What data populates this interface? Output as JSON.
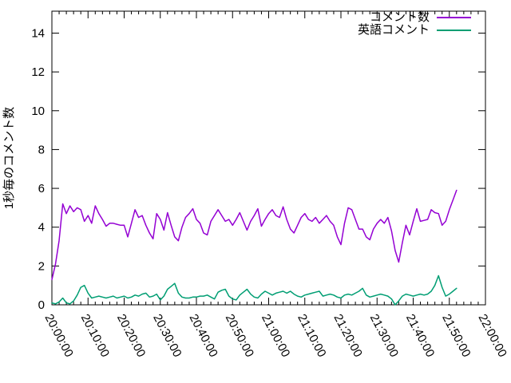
{
  "chart_data": {
    "type": "line",
    "title": "",
    "xlabel": "",
    "ylabel": "1秒毎のコメント数",
    "grid": false,
    "legend_position": "top-right-inside",
    "background_color": "#ffffff",
    "frame_color": "#000000",
    "ylim": [
      0,
      15.13
    ],
    "y_major_ticks": [
      0,
      2,
      4,
      6,
      8,
      10,
      12,
      14
    ],
    "xlim_minutes": [
      0,
      120
    ],
    "x_major_ticks": [
      {
        "minute": 0,
        "label": "20:00:00"
      },
      {
        "minute": 10,
        "label": "20:10:00"
      },
      {
        "minute": 20,
        "label": "20:20:00"
      },
      {
        "minute": 30,
        "label": "20:30:00"
      },
      {
        "minute": 40,
        "label": "20:40:00"
      },
      {
        "minute": 50,
        "label": "20:50:00"
      },
      {
        "minute": 60,
        "label": "21:00:00"
      },
      {
        "minute": 70,
        "label": "21:10:00"
      },
      {
        "minute": 80,
        "label": "21:20:00"
      },
      {
        "minute": 90,
        "label": "21:30:00"
      },
      {
        "minute": 100,
        "label": "21:40:00"
      },
      {
        "minute": 110,
        "label": "21:50:00"
      },
      {
        "minute": 120,
        "label": "22:00:00"
      }
    ],
    "x_minor_tick_interval_minutes": 2,
    "x_start_minute": 0,
    "x_step_minutes": 1,
    "series": [
      {
        "name": "コメント数",
        "color": "#9400d3",
        "values": [
          1.3,
          2.1,
          3.3,
          5.2,
          4.7,
          5.1,
          4.8,
          5.0,
          4.9,
          4.3,
          4.6,
          4.2,
          5.1,
          4.7,
          4.4,
          4.05,
          4.2,
          4.2,
          4.15,
          4.1,
          4.1,
          3.5,
          4.2,
          4.9,
          4.5,
          4.6,
          4.1,
          3.7,
          3.4,
          4.7,
          4.4,
          3.85,
          4.75,
          4.1,
          3.5,
          3.3,
          4.0,
          4.5,
          4.7,
          4.95,
          4.4,
          4.2,
          3.7,
          3.6,
          4.3,
          4.6,
          4.9,
          4.6,
          4.3,
          4.4,
          4.1,
          4.4,
          4.75,
          4.3,
          3.85,
          4.3,
          4.6,
          4.95,
          4.05,
          4.4,
          4.7,
          4.9,
          4.6,
          4.5,
          5.05,
          4.4,
          3.9,
          3.7,
          4.1,
          4.5,
          4.7,
          4.4,
          4.3,
          4.5,
          4.2,
          4.4,
          4.6,
          4.3,
          4.1,
          3.5,
          3.1,
          4.2,
          5.0,
          4.9,
          4.4,
          3.9,
          3.9,
          3.5,
          3.35,
          3.9,
          4.2,
          4.4,
          4.2,
          4.5,
          3.8,
          2.8,
          2.2,
          3.2,
          4.1,
          3.6,
          4.3,
          4.95,
          4.3,
          4.35,
          4.4,
          4.9,
          4.75,
          4.7,
          4.1,
          4.3,
          4.9,
          5.4,
          5.9
        ]
      },
      {
        "name": "英語コメント",
        "color": "#009e73",
        "values": [
          0.1,
          0.05,
          0.15,
          0.35,
          0.1,
          0.05,
          0.2,
          0.5,
          0.9,
          1.0,
          0.6,
          0.35,
          0.4,
          0.45,
          0.4,
          0.35,
          0.4,
          0.45,
          0.35,
          0.4,
          0.45,
          0.35,
          0.4,
          0.5,
          0.45,
          0.55,
          0.6,
          0.4,
          0.45,
          0.55,
          0.25,
          0.45,
          0.8,
          0.95,
          1.1,
          0.6,
          0.4,
          0.35,
          0.35,
          0.4,
          0.4,
          0.45,
          0.45,
          0.5,
          0.4,
          0.3,
          0.65,
          0.75,
          0.8,
          0.45,
          0.3,
          0.25,
          0.5,
          0.65,
          0.8,
          0.55,
          0.4,
          0.35,
          0.55,
          0.7,
          0.6,
          0.5,
          0.6,
          0.65,
          0.7,
          0.6,
          0.7,
          0.55,
          0.45,
          0.4,
          0.5,
          0.55,
          0.6,
          0.65,
          0.7,
          0.45,
          0.5,
          0.55,
          0.5,
          0.4,
          0.35,
          0.5,
          0.55,
          0.5,
          0.6,
          0.7,
          0.85,
          0.5,
          0.4,
          0.45,
          0.5,
          0.55,
          0.5,
          0.45,
          0.3,
          0.0,
          0.2,
          0.45,
          0.55,
          0.5,
          0.45,
          0.5,
          0.55,
          0.5,
          0.55,
          0.7,
          1.0,
          1.5,
          0.9,
          0.45,
          0.55,
          0.7,
          0.85
        ]
      }
    ]
  }
}
